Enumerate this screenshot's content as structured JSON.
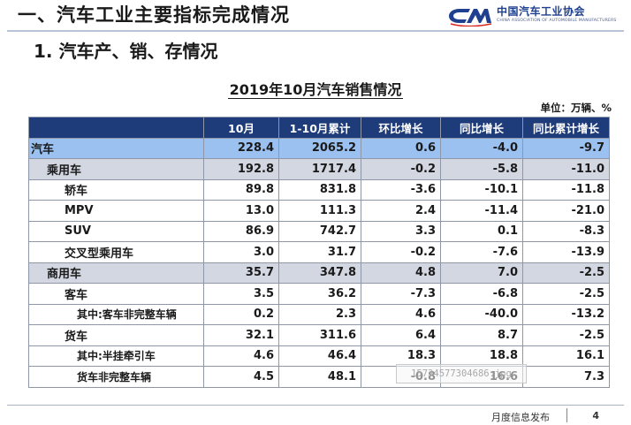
{
  "header": {
    "title": "一、汽车工业主要指标完成情况",
    "logo": {
      "name_cn": "中国汽车工业协会",
      "name_en": "CHINA ASSOCIATION OF AUTOMOBILE MANUFACTURERS",
      "mark_text": "CAAM",
      "brand_color": "#1f3f8f"
    }
  },
  "section": {
    "subtitle": "1. 汽车产、销、存情况"
  },
  "table": {
    "title": "2019年10月汽车销售情况",
    "unit": "单位：万辆、%",
    "columns": [
      "",
      "10月",
      "1-10月累计",
      "环比增长",
      "同比增长",
      "同比累计增长"
    ],
    "rows": [
      {
        "label": "汽车",
        "level": "lv0",
        "values": [
          "228.4",
          "2065.2",
          "0.6",
          "-4.0",
          "-9.7"
        ]
      },
      {
        "label": "乘用车",
        "level": "lv1",
        "values": [
          "192.8",
          "1717.4",
          "-0.2",
          "-5.8",
          "-11.0"
        ]
      },
      {
        "label": "轿车",
        "level": "lv2",
        "values": [
          "89.8",
          "831.8",
          "-3.6",
          "-10.1",
          "-11.8"
        ]
      },
      {
        "label": "MPV",
        "level": "lv2",
        "values": [
          "13.0",
          "111.3",
          "2.4",
          "-11.4",
          "-21.0"
        ]
      },
      {
        "label": "SUV",
        "level": "lv2",
        "values": [
          "86.9",
          "742.7",
          "3.3",
          "0.1",
          "-8.3"
        ]
      },
      {
        "label": "交叉型乘用车",
        "level": "lv2",
        "values": [
          "3.0",
          "31.7",
          "-0.2",
          "-7.6",
          "-13.9"
        ]
      },
      {
        "label": "商用车",
        "level": "lv1",
        "values": [
          "35.7",
          "347.8",
          "4.8",
          "7.0",
          "-2.5"
        ]
      },
      {
        "label": "客车",
        "level": "lv2",
        "values": [
          "3.5",
          "36.2",
          "-7.3",
          "-6.8",
          "-2.5"
        ]
      },
      {
        "label": "其中:客车非完整车辆",
        "level": "lv2 note",
        "values": [
          "0.2",
          "2.3",
          "4.6",
          "-40.0",
          "-13.2"
        ]
      },
      {
        "label": "货车",
        "level": "lv2",
        "values": [
          "32.1",
          "311.6",
          "6.4",
          "8.7",
          "-2.5"
        ]
      },
      {
        "label": "其中:半挂牵引车",
        "level": "lv2 note",
        "values": [
          "4.6",
          "46.4",
          "18.3",
          "18.8",
          "16.1"
        ]
      },
      {
        "label": "货车非完整车辆",
        "level": "lv2 note2",
        "values": [
          "4.5",
          "48.1",
          "-0.8",
          "16.6",
          "7.3"
        ]
      }
    ]
  },
  "watermark": {
    "text": "15734577304686.jpg"
  },
  "footer": {
    "text": "月度信息发布",
    "page": "4"
  }
}
